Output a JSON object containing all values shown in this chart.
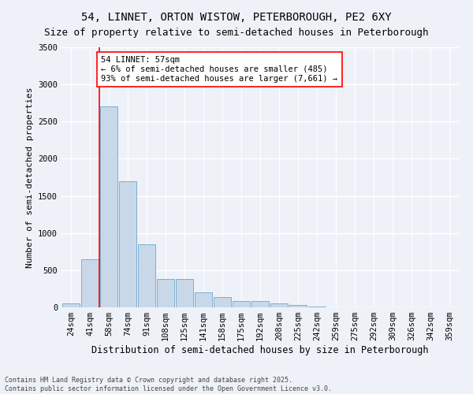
{
  "title": "54, LINNET, ORTON WISTOW, PETERBOROUGH, PE2 6XY",
  "subtitle": "Size of property relative to semi-detached houses in Peterborough",
  "xlabel": "Distribution of semi-detached houses by size in Peterborough",
  "ylabel": "Number of semi-detached properties",
  "categories": [
    "24sqm",
    "41sqm",
    "58sqm",
    "74sqm",
    "91sqm",
    "108sqm",
    "125sqm",
    "141sqm",
    "158sqm",
    "175sqm",
    "192sqm",
    "208sqm",
    "225sqm",
    "242sqm",
    "259sqm",
    "275sqm",
    "292sqm",
    "309sqm",
    "326sqm",
    "342sqm",
    "359sqm"
  ],
  "values": [
    50,
    650,
    2700,
    1700,
    850,
    380,
    380,
    200,
    140,
    80,
    80,
    50,
    30,
    10,
    5,
    2,
    1,
    1,
    0,
    0,
    0
  ],
  "bar_color": "#c8d8e8",
  "bar_edge_color": "#7bafd4",
  "vline_color": "red",
  "vline_x": 1.5,
  "annotation_text": "54 LINNET: 57sqm\n← 6% of semi-detached houses are smaller (485)\n93% of semi-detached houses are larger (7,661) →",
  "annotation_box_color": "white",
  "annotation_box_edge_color": "red",
  "annotation_fontsize": 7.5,
  "ylim": [
    0,
    3500
  ],
  "yticks": [
    0,
    500,
    1000,
    1500,
    2000,
    2500,
    3000,
    3500
  ],
  "footer_text": "Contains HM Land Registry data © Crown copyright and database right 2025.\nContains public sector information licensed under the Open Government Licence v3.0.",
  "background_color": "#eef2f8",
  "grid_color": "white",
  "title_fontsize": 10,
  "subtitle_fontsize": 9,
  "xlabel_fontsize": 8.5,
  "ylabel_fontsize": 8,
  "tick_fontsize": 7.5,
  "footer_fontsize": 6
}
